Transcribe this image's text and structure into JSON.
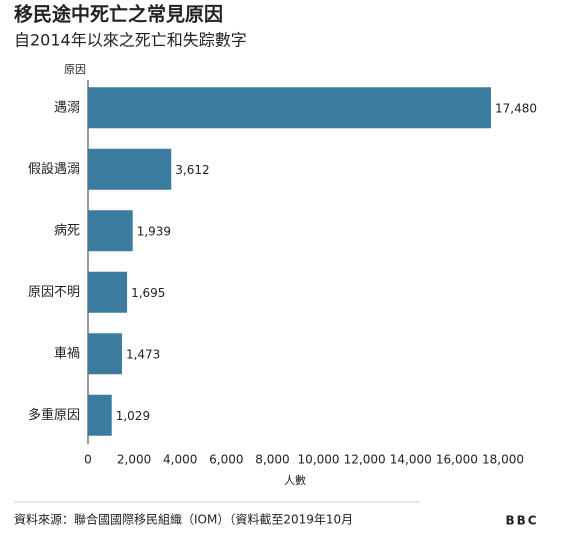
{
  "chart_data": {
    "type": "bar",
    "orientation": "horizontal",
    "title": "移民途中死亡之常見原因",
    "subtitle": "自2014年以來之死亡和失踪數字",
    "y_axis_label": "原因",
    "x_axis_label": "人數",
    "categories": [
      "遇溺",
      "假設遇溺",
      "病死",
      "原因不明",
      "車禍",
      "多重原因"
    ],
    "values": [
      17480,
      3612,
      1939,
      1695,
      1473,
      1029
    ],
    "value_labels": [
      "17,480",
      "3,612",
      "1,939",
      "1,695",
      "1,473",
      "1,029"
    ],
    "color": "#3b7b9d",
    "xlim": [
      0,
      18000
    ],
    "xticks": [
      0,
      {
        "value": 2000,
        "label": "2,000"
      },
      {
        "value": 4000,
        "label": "4,000"
      },
      {
        "value": 6000,
        "label": "6,000"
      },
      {
        "value": 8000,
        "label": "8,000"
      },
      {
        "value": 10000,
        "label": "10,000"
      },
      {
        "value": 12000,
        "label": "12,000"
      },
      {
        "value": 14000,
        "label": "14,000"
      },
      {
        "value": 16000,
        "label": "16,000"
      },
      {
        "value": 18000,
        "label": "18,000"
      }
    ],
    "grid": false,
    "source": "資料來源：聯合國國際移民組織（IOM）（資料截至2019年10月",
    "logo": "BBC"
  }
}
